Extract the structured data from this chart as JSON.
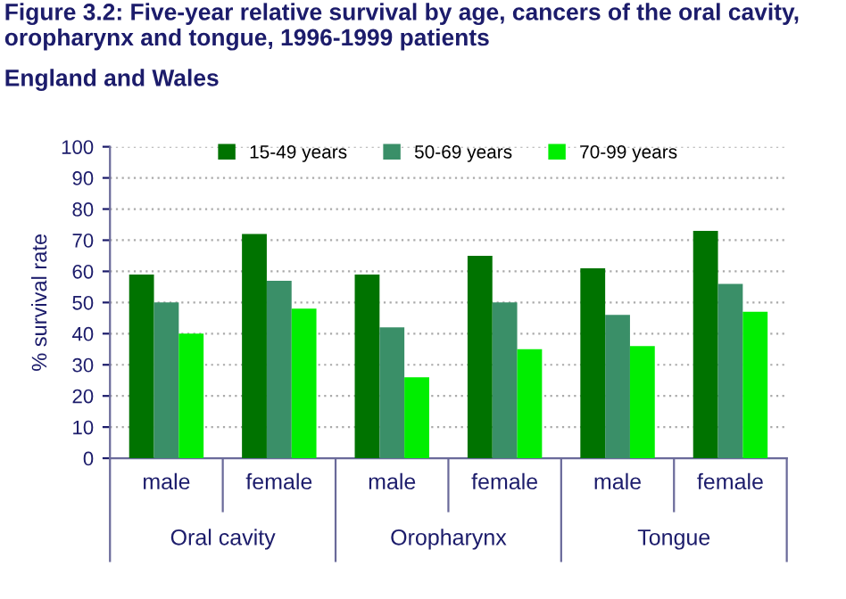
{
  "chart_data": {
    "type": "bar",
    "title": "Figure 3.2: Five-year relative survival by age, cancers of the oral cavity, oropharynx and tongue, 1996-1999 patients",
    "subtitle": "England and Wales",
    "ylabel": "% survival rate",
    "categories": [
      "male",
      "female",
      "male",
      "female",
      "male",
      "female"
    ],
    "series": [
      {
        "name": "15-49 years",
        "color": "#007300",
        "values": [
          59,
          72,
          59,
          65,
          61,
          73
        ]
      },
      {
        "name": "50-69 years",
        "color": "#3a8f68",
        "values": [
          50,
          57,
          42,
          50,
          46,
          56
        ]
      },
      {
        "name": "70-99 years",
        "color": "#00ee00",
        "values": [
          40,
          48,
          26,
          35,
          36,
          47
        ]
      }
    ],
    "annotations": [
      "Oral cavity",
      "Oropharynx",
      "Tongue"
    ],
    "ylim": [
      0,
      100
    ],
    "yticks": [
      0,
      10,
      20,
      30,
      40,
      50,
      60,
      70,
      80,
      90,
      100
    ],
    "grid": "y",
    "legend": "top"
  }
}
